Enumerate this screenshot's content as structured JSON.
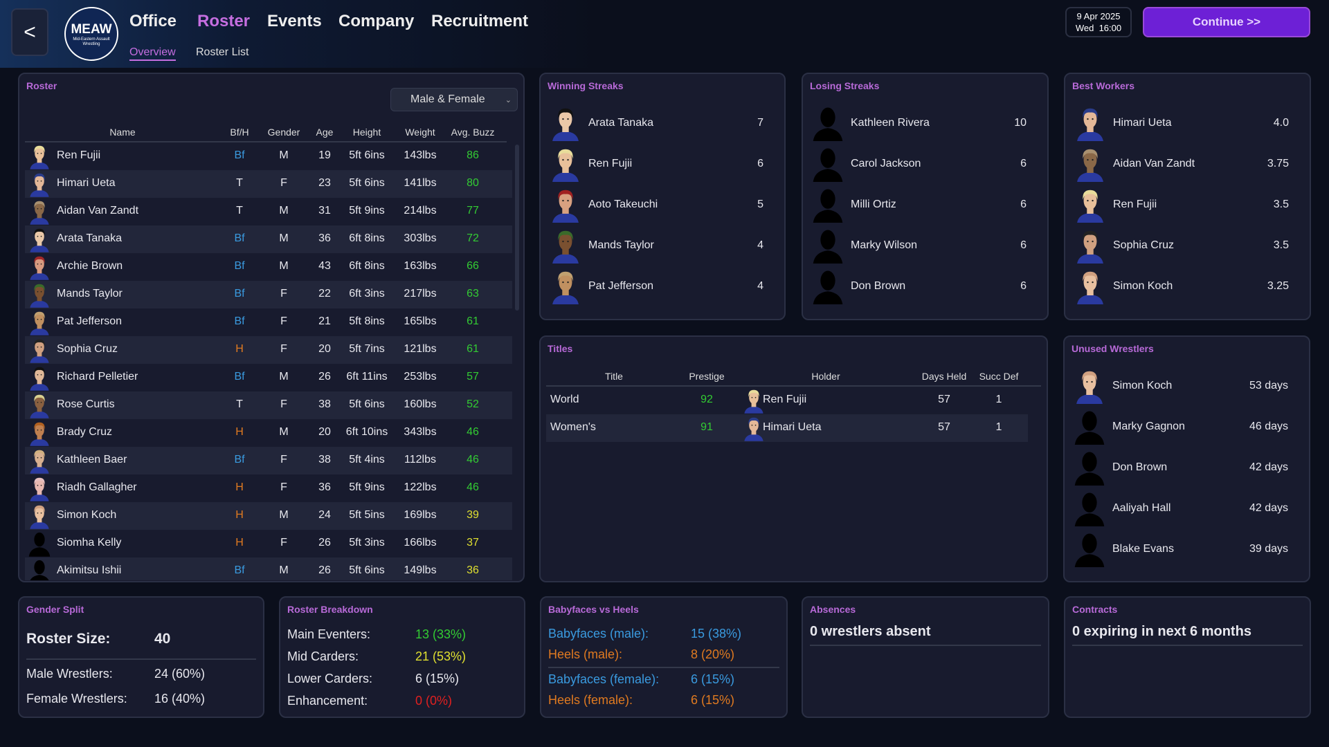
{
  "header": {
    "back_label": "<",
    "logo": {
      "abbr": "MEAW",
      "full": "Mid-Eastern Assault Wrestling"
    },
    "nav": [
      {
        "label": "Office"
      },
      {
        "label": "Roster",
        "active": true
      },
      {
        "label": "Events"
      },
      {
        "label": "Company"
      },
      {
        "label": "Recruitment"
      }
    ],
    "subnav": [
      {
        "label": "Overview",
        "active": true
      },
      {
        "label": "Roster List"
      }
    ],
    "date": "9 Apr 2025",
    "daytime": "Wed  16:00",
    "continue_label": "Continue >>"
  },
  "colors": {
    "accent": "#b86ad8",
    "babyface": "#3a9be0",
    "heel": "#e07a20",
    "green": "#33cc33",
    "yellow": "#e0e030",
    "red": "#e02020"
  },
  "roster": {
    "title": "Roster",
    "filter": "Male & Female",
    "columns": [
      "Name",
      "Bf/H",
      "Gender",
      "Age",
      "Height",
      "Weight",
      "Avg. Buzz"
    ],
    "rows": [
      {
        "name": "Ren Fujii",
        "bfh": "Bf",
        "gender": "M",
        "age": "19",
        "height": "5ft 6ins",
        "weight": "143lbs",
        "buzz": "86",
        "avatar": {
          "skin": "#e8c09a",
          "hair": "#e8dc9a"
        }
      },
      {
        "name": "Himari Ueta",
        "bfh": "T",
        "gender": "F",
        "age": "23",
        "height": "5ft 6ins",
        "weight": "141lbs",
        "buzz": "80",
        "avatar": {
          "skin": "#e4b898",
          "hair": "#2a3c8a"
        }
      },
      {
        "name": "Aidan Van Zandt",
        "bfh": "T",
        "gender": "M",
        "age": "31",
        "height": "5ft 9ins",
        "weight": "214lbs",
        "buzz": "77",
        "avatar": {
          "skin": "#8a6848",
          "hair": "#a89070"
        }
      },
      {
        "name": "Arata Tanaka",
        "bfh": "Bf",
        "gender": "M",
        "age": "36",
        "height": "6ft 8ins",
        "weight": "303lbs",
        "buzz": "72",
        "avatar": {
          "skin": "#eac8a8",
          "hair": "#111111"
        }
      },
      {
        "name": "Archie Brown",
        "bfh": "Bf",
        "gender": "M",
        "age": "43",
        "height": "6ft 8ins",
        "weight": "163lbs",
        "buzz": "66",
        "avatar": {
          "skin": "#d89a80",
          "hair": "#a02828"
        }
      },
      {
        "name": "Mands Taylor",
        "bfh": "Bf",
        "gender": "F",
        "age": "22",
        "height": "6ft 3ins",
        "weight": "217lbs",
        "buzz": "63",
        "avatar": {
          "skin": "#7a5030",
          "hair": "#3a6a2a"
        }
      },
      {
        "name": "Pat Jefferson",
        "bfh": "Bf",
        "gender": "F",
        "age": "21",
        "height": "5ft 8ins",
        "weight": "165lbs",
        "buzz": "61",
        "avatar": {
          "skin": "#c09060",
          "hair": "#c0a070"
        }
      },
      {
        "name": "Sophia Cruz",
        "bfh": "H",
        "gender": "F",
        "age": "20",
        "height": "5ft 7ins",
        "weight": "121lbs",
        "buzz": "61",
        "avatar": {
          "skin": "#d0a080",
          "hair": "#222222"
        }
      },
      {
        "name": "Richard Pelletier",
        "bfh": "Bf",
        "gender": "M",
        "age": "26",
        "height": "6ft 11ins",
        "weight": "253lbs",
        "buzz": "57",
        "avatar": {
          "skin": "#e0b898",
          "hair": "#111111"
        }
      },
      {
        "name": "Rose Curtis",
        "bfh": "T",
        "gender": "F",
        "age": "38",
        "height": "5ft 6ins",
        "weight": "160lbs",
        "buzz": "52",
        "avatar": {
          "skin": "#8a6040",
          "hair": "#d8d090"
        }
      },
      {
        "name": "Brady Cruz",
        "bfh": "H",
        "gender": "M",
        "age": "20",
        "height": "6ft 10ins",
        "weight": "343lbs",
        "buzz": "46",
        "avatar": {
          "skin": "#c08050",
          "hair": "#b06020"
        }
      },
      {
        "name": "Kathleen Baer",
        "bfh": "Bf",
        "gender": "F",
        "age": "38",
        "height": "5ft 4ins",
        "weight": "112lbs",
        "buzz": "46",
        "avatar": {
          "skin": "#d8b090",
          "hair": "#d0b080"
        }
      },
      {
        "name": "Riadh Gallagher",
        "bfh": "H",
        "gender": "F",
        "age": "36",
        "height": "5ft 9ins",
        "weight": "122lbs",
        "buzz": "46",
        "avatar": {
          "skin": "#e8b8b0",
          "hair": "#e8c0c0"
        }
      },
      {
        "name": "Simon Koch",
        "bfh": "H",
        "gender": "M",
        "age": "24",
        "height": "5ft 5ins",
        "weight": "169lbs",
        "buzz": "39",
        "avatar": {
          "skin": "#e8c0a0",
          "hair": "#d0a080"
        }
      },
      {
        "name": "Siomha Kelly",
        "bfh": "H",
        "gender": "F",
        "age": "26",
        "height": "5ft 3ins",
        "weight": "166lbs",
        "buzz": "37",
        "avatar": {
          "silhouette": true
        }
      },
      {
        "name": "Akimitsu Ishii",
        "bfh": "Bf",
        "gender": "M",
        "age": "26",
        "height": "5ft 6ins",
        "weight": "149lbs",
        "buzz": "36",
        "avatar": {
          "silhouette": true
        }
      }
    ]
  },
  "winning": {
    "title": "Winning Streaks",
    "items": [
      {
        "name": "Arata Tanaka",
        "value": "7",
        "avatar": {
          "skin": "#eac8a8",
          "hair": "#111111"
        }
      },
      {
        "name": "Ren Fujii",
        "value": "6",
        "avatar": {
          "skin": "#e8c09a",
          "hair": "#e8dc9a"
        }
      },
      {
        "name": "Aoto Takeuchi",
        "value": "5",
        "avatar": {
          "skin": "#d8a080",
          "hair": "#a02020"
        }
      },
      {
        "name": "Mands Taylor",
        "value": "4",
        "avatar": {
          "skin": "#7a5030",
          "hair": "#3a6a2a"
        }
      },
      {
        "name": "Pat Jefferson",
        "value": "4",
        "avatar": {
          "skin": "#c09060",
          "hair": "#c0a070"
        }
      }
    ]
  },
  "losing": {
    "title": "Losing Streaks",
    "items": [
      {
        "name": "Kathleen Rivera",
        "value": "10",
        "avatar": {
          "silhouette": true
        }
      },
      {
        "name": "Carol Jackson",
        "value": "6",
        "avatar": {
          "silhouette": true
        }
      },
      {
        "name": "Milli Ortiz",
        "value": "6",
        "avatar": {
          "silhouette": true
        }
      },
      {
        "name": "Marky Wilson",
        "value": "6",
        "avatar": {
          "silhouette": true
        }
      },
      {
        "name": "Don Brown",
        "value": "6",
        "avatar": {
          "silhouette": true
        }
      }
    ]
  },
  "best": {
    "title": "Best Workers",
    "items": [
      {
        "name": "Himari Ueta",
        "value": "4.0",
        "avatar": {
          "skin": "#e4b898",
          "hair": "#2a3c8a"
        }
      },
      {
        "name": "Aidan Van Zandt",
        "value": "3.75",
        "avatar": {
          "skin": "#8a6848",
          "hair": "#a89070"
        }
      },
      {
        "name": "Ren Fujii",
        "value": "3.5",
        "avatar": {
          "skin": "#e8c09a",
          "hair": "#e8dc9a"
        }
      },
      {
        "name": "Sophia Cruz",
        "value": "3.5",
        "avatar": {
          "skin": "#d0a080",
          "hair": "#222222"
        }
      },
      {
        "name": "Simon Koch",
        "value": "3.25",
        "avatar": {
          "skin": "#e8c0a0",
          "hair": "#d0a080"
        }
      }
    ]
  },
  "titles": {
    "title": "Titles",
    "columns": [
      "Title",
      "Prestige",
      "Holder",
      "Days Held",
      "Succ Def"
    ],
    "rows": [
      {
        "title": "World",
        "prestige": "92",
        "holder": "Ren Fujii",
        "days": "57",
        "succ": "1",
        "avatar": {
          "skin": "#e8c09a",
          "hair": "#e8dc9a"
        }
      },
      {
        "title": "Women's",
        "prestige": "91",
        "holder": "Himari Ueta",
        "days": "57",
        "succ": "1",
        "avatar": {
          "skin": "#e4b898",
          "hair": "#2a3c8a"
        }
      }
    ]
  },
  "unused": {
    "title": "Unused Wrestlers",
    "items": [
      {
        "name": "Simon Koch",
        "value": "53 days",
        "avatar": {
          "skin": "#e8c0a0",
          "hair": "#d0a080"
        }
      },
      {
        "name": "Marky Gagnon",
        "value": "46 days",
        "avatar": {
          "silhouette": true
        }
      },
      {
        "name": "Don Brown",
        "value": "42 days",
        "avatar": {
          "silhouette": true
        }
      },
      {
        "name": "Aaliyah Hall",
        "value": "42 days",
        "avatar": {
          "silhouette": true
        }
      },
      {
        "name": "Blake Evans",
        "value": "39 days",
        "avatar": {
          "silhouette": true
        }
      }
    ]
  },
  "gender_split": {
    "title": "Gender Split",
    "roster_size_label": "Roster Size:",
    "roster_size": "40",
    "male_label": "Male Wrestlers:",
    "male": "24 (60%)",
    "female_label": "Female Wrestlers:",
    "female": "16 (40%)"
  },
  "breakdown": {
    "title": "Roster Breakdown",
    "rows": [
      {
        "label": "Main Eventers:",
        "value": "13 (33%)",
        "color": "#33cc33"
      },
      {
        "label": "Mid Carders:",
        "value": "21 (53%)",
        "color": "#e0e030"
      },
      {
        "label": "Lower Carders:",
        "value": "6 (15%)",
        "color": "#e8e8ee"
      },
      {
        "label": "Enhancement:",
        "value": "0 (0%)",
        "color": "#e02020"
      }
    ]
  },
  "bvh": {
    "title": "Babyfaces vs Heels",
    "rows": [
      {
        "label": "Babyfaces (male):",
        "value": "15 (38%)",
        "type": "babyface"
      },
      {
        "label": "Heels (male):",
        "value": "8 (20%)",
        "type": "heel"
      },
      {
        "label": "Babyfaces (female):",
        "value": "6 (15%)",
        "type": "babyface"
      },
      {
        "label": "Heels (female):",
        "value": "6 (15%)",
        "type": "heel"
      }
    ]
  },
  "absences": {
    "title": "Absences",
    "text": "0 wrestlers absent"
  },
  "contracts": {
    "title": "Contracts",
    "text": "0 expiring in next 6 months"
  }
}
